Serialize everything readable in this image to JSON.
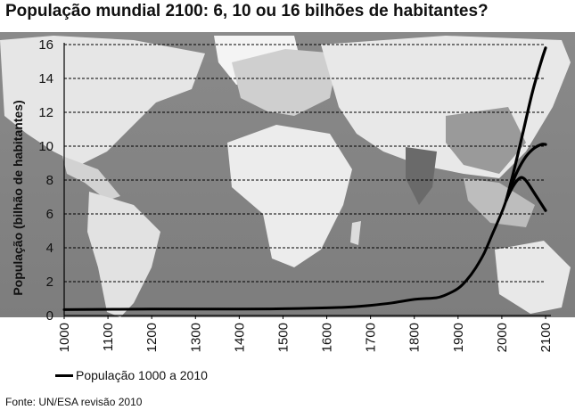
{
  "chart_data": {
    "type": "line",
    "title": "População mundial 2100: 6, 10 ou 16 bilhões de habitantes?",
    "ylabel": "População (bilhão de habitantes)",
    "xlabel": "",
    "xlim": [
      1000,
      2100
    ],
    "ylim": [
      0,
      16
    ],
    "x_ticks": [
      "1000",
      "1100",
      "1200",
      "1300",
      "1400",
      "1500",
      "1600",
      "1700",
      "1800",
      "1900",
      "2000",
      "2100"
    ],
    "y_ticks": [
      "0",
      "2",
      "4",
      "6",
      "8",
      "10",
      "12",
      "14",
      "16"
    ],
    "grid": "horizontal dashed",
    "background": "world map (grayscale)",
    "legend": {
      "position": "bottom-left",
      "entries": [
        "População 1000 a 2010"
      ]
    },
    "series": [
      {
        "name": "População 1000 a 2010",
        "x": [
          1000,
          1200,
          1400,
          1500,
          1600,
          1650,
          1700,
          1750,
          1800,
          1850,
          1870,
          1900,
          1920,
          1940,
          1960,
          1980,
          2000,
          2010
        ],
        "y": [
          0.35,
          0.38,
          0.38,
          0.4,
          0.45,
          0.5,
          0.6,
          0.75,
          0.95,
          1.05,
          1.2,
          1.6,
          2.1,
          2.8,
          3.7,
          4.9,
          6.1,
          6.8
        ]
      },
      {
        "x": [
          2010,
          2030,
          2050,
          2070,
          2090,
          2100
        ],
        "y": [
          6.8,
          8.8,
          11.0,
          13.2,
          15.0,
          15.8
        ]
      },
      {
        "x": [
          2010,
          2030,
          2050,
          2070,
          2090,
          2100
        ],
        "y": [
          6.8,
          8.2,
          9.2,
          9.8,
          10.1,
          10.1
        ]
      },
      {
        "x": [
          2010,
          2025,
          2040,
          2050,
          2060,
          2080,
          2100
        ],
        "y": [
          6.8,
          7.6,
          8.1,
          8.1,
          7.8,
          7.0,
          6.2
        ]
      }
    ],
    "source": "Fonte: UN/ESA revisão 2010"
  },
  "colors": {
    "line": "#000000",
    "grid": "#000000"
  }
}
